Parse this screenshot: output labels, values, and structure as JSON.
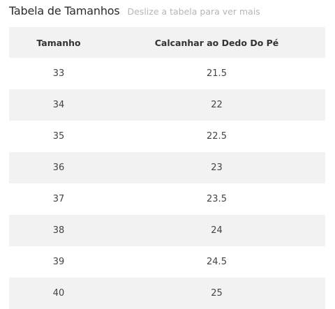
{
  "header": {
    "title": "Tabela de Tamanhos",
    "hint": "Deslize a tabela para ver mais"
  },
  "table": {
    "columns": [
      "Tamanho",
      "Calcanhar ao Dedo Do Pé"
    ],
    "rows": [
      [
        "33",
        "21.5"
      ],
      [
        "34",
        "22"
      ],
      [
        "35",
        "22.5"
      ],
      [
        "36",
        "23"
      ],
      [
        "37",
        "23.5"
      ],
      [
        "38",
        "24"
      ],
      [
        "39",
        "24.5"
      ],
      [
        "40",
        "25"
      ]
    ]
  },
  "colors": {
    "shade": "#f2f2f2",
    "hint_text": "#b5b5b5"
  }
}
